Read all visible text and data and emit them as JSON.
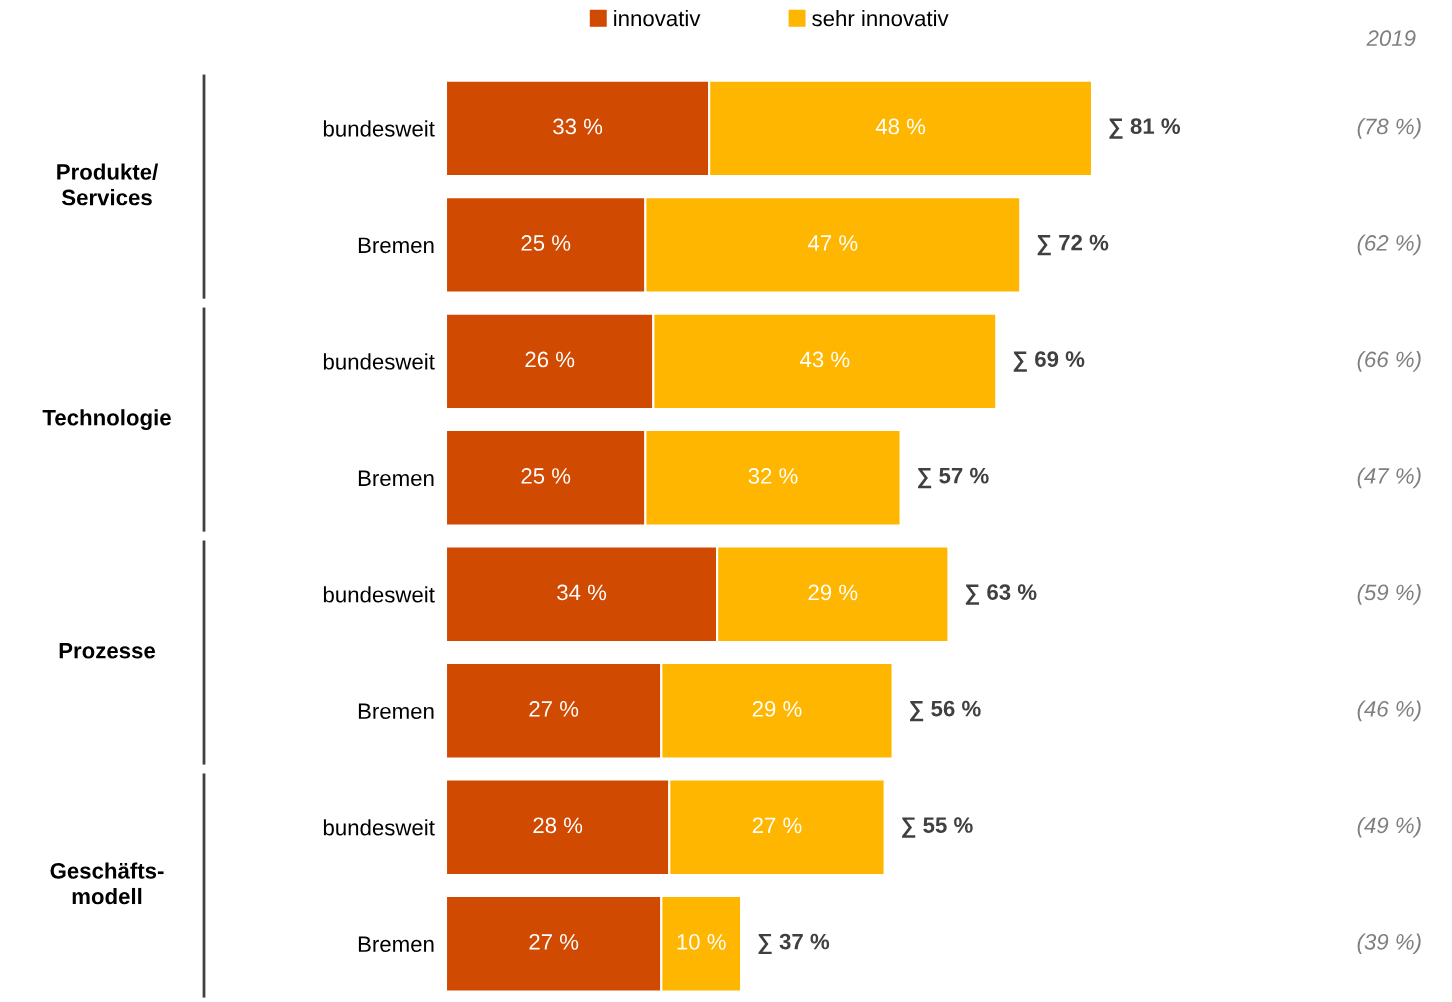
{
  "chart_data": {
    "type": "bar",
    "orientation": "horizontal",
    "stacked": true,
    "categories": [
      "bundesweit",
      "Bremen",
      "bundesweit",
      "Bremen",
      "bundesweit",
      "Bremen",
      "bundesweit",
      "Bremen"
    ],
    "series": [
      {
        "name": "innovativ",
        "color": "#d04a02",
        "values": [
          33,
          25,
          26,
          25,
          34,
          27,
          28,
          27
        ],
        "value_labels": [
          "33 %",
          "25 %",
          "26 %",
          "25 %",
          "34 %",
          "27 %",
          "28 %",
          "27 %"
        ]
      },
      {
        "name": "sehr innovativ",
        "color": "#ffb600",
        "values": [
          48,
          47,
          43,
          32,
          29,
          29,
          27,
          10
        ],
        "value_labels": [
          "48 %",
          "47 %",
          "43 %",
          "32 %",
          "29 %",
          "29 %",
          "27 %",
          "10 %"
        ]
      }
    ],
    "totals": [
      "∑ 81 %",
      "∑ 72 %",
      "∑ 69 %",
      "∑ 57 %",
      "∑ 63 %",
      "∑ 56 %",
      "∑ 55 %",
      "∑ 37 %"
    ],
    "annotations": [
      "Produkte/\nServices",
      "Technologie",
      "Prozesse",
      "Geschäfts-\nmodell",
      "2019",
      "(78 %)",
      "(62 %)",
      "(66 %)",
      "(47 %)",
      "(59 %)",
      "(46 %)",
      "(49 %)",
      "(39 %)"
    ],
    "tick_labels": "y",
    "legend": "top",
    "grid": false
  }
}
